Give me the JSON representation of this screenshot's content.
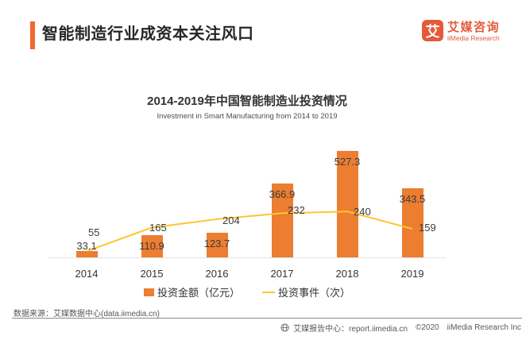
{
  "header": {
    "title": "智能制造行业成资本关注风口",
    "accent_color": "#F2672D",
    "logo": {
      "mark": "艾",
      "name_cn": "艾媒咨询",
      "name_en": "iiMedia Research",
      "color": "#E5593A"
    }
  },
  "chart_data": {
    "type": "combo-bar-line",
    "title": "2014-2019年中国智能制造业投资情况",
    "subtitle": "Investment in Smart Manufacturing from 2014 to 2019",
    "categories": [
      "2014",
      "2015",
      "2016",
      "2017",
      "2018",
      "2019"
    ],
    "series": [
      {
        "name": "投资金额（亿元）",
        "type": "bar",
        "color": "#EC7D31",
        "values": [
          33.1,
          110.9,
          123.7,
          366.9,
          527.3,
          343.5
        ]
      },
      {
        "name": "投资事件（次）",
        "type": "line",
        "color": "#FFC533",
        "values": [
          55,
          165,
          204,
          232,
          240,
          159
        ]
      }
    ],
    "xlabel": "",
    "ylabel": "",
    "legend_position": "bottom",
    "grid": false,
    "value_labels": true
  },
  "footer": {
    "source": "数据来源：艾媒数据中心(data.iimedia.cn)",
    "report_center": "艾媒报告中心：report.iimedia.cn",
    "copyright": "©2020",
    "company": "iiMedia Research Inc"
  }
}
